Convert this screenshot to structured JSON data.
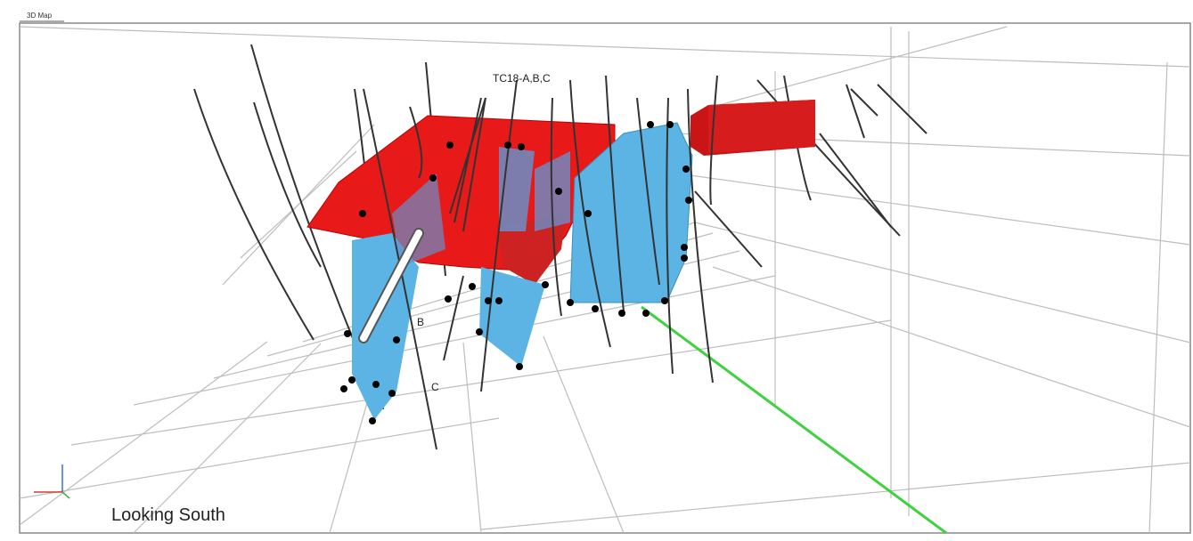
{
  "window": {
    "title": "3D Map"
  },
  "view": {
    "labels": {
      "holes": "TC18-A,B,C",
      "b": "B",
      "c": "C"
    },
    "orientation": "Looking South"
  }
}
